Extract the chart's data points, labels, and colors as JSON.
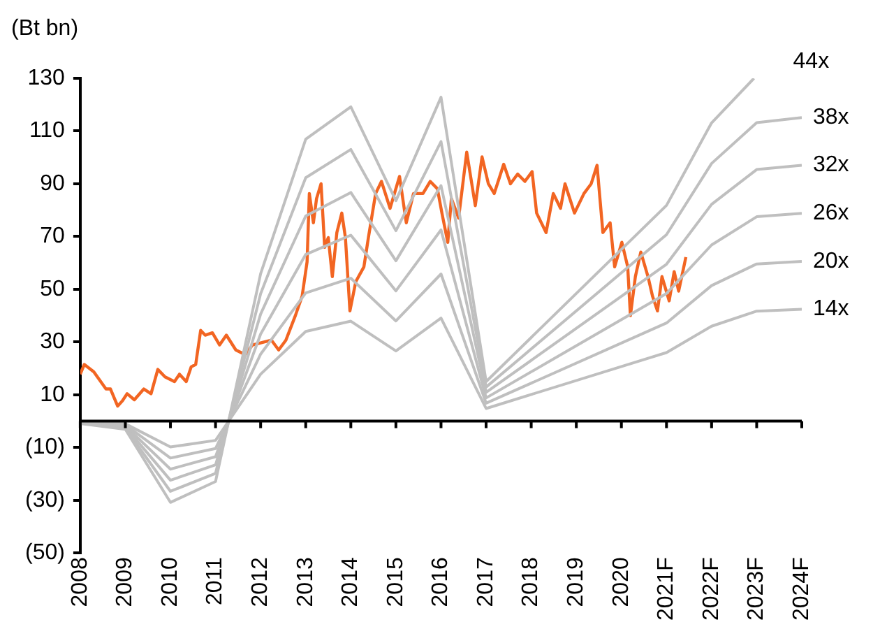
{
  "chart_data": {
    "type": "line",
    "ylabel": "(Bt bn)",
    "xlim": [
      2008,
      2024
    ],
    "xticks": [
      2008,
      2009,
      2010,
      2011,
      2012,
      2013,
      2014,
      2015,
      2016,
      2017,
      2018,
      2019,
      2020,
      {
        "value": 2021,
        "label": "2021F"
      },
      {
        "value": 2022,
        "label": "2022F"
      },
      {
        "value": 2023,
        "label": "2023F"
      },
      {
        "value": 2024,
        "label": "2024F"
      }
    ],
    "ylim": [
      -50,
      130
    ],
    "yticks": [
      {
        "value": -50,
        "label": "(50)"
      },
      {
        "value": -30,
        "label": "(30)"
      },
      {
        "value": -10,
        "label": "(10)"
      },
      10,
      30,
      50,
      70,
      90,
      110,
      130
    ],
    "legend": false,
    "marker": "none",
    "line_style": "solid",
    "series": [
      {
        "name": "44x",
        "color": "#bfbfbf",
        "x": [
          2008,
          2009,
          2010,
          2011,
          2012,
          2013,
          2014,
          2015,
          2016,
          2017,
          2021,
          2022,
          2022.94
        ],
        "values": [
          -0.9,
          -3.1,
          -30.8,
          -22.9,
          55.9,
          106.9,
          119.2,
          83.6,
          122.8,
          15,
          81.8,
          113.1,
          130
        ]
      },
      {
        "name": "38x",
        "color": "#bfbfbf",
        "x": [
          2008,
          2009,
          2010,
          2011,
          2012,
          2013,
          2014,
          2015,
          2016,
          2017,
          2021,
          2022,
          2023,
          2024
        ],
        "values": [
          -0.8,
          -2.7,
          -26.6,
          -19.8,
          48.3,
          92.3,
          103,
          72.2,
          106,
          12.9,
          70.7,
          97.7,
          113.2,
          115.1
        ]
      },
      {
        "name": "32x",
        "color": "#bfbfbf",
        "x": [
          2008,
          2009,
          2010,
          2011,
          2012,
          2013,
          2014,
          2015,
          2016,
          2017,
          2021,
          2022,
          2023,
          2024
        ],
        "values": [
          -0.6,
          -2.2,
          -22.4,
          -16.6,
          40.6,
          77.8,
          86.7,
          60.8,
          89.3,
          10.9,
          59.5,
          82.2,
          95.4,
          97
        ]
      },
      {
        "name": "26x",
        "color": "#bfbfbf",
        "x": [
          2008,
          2009,
          2010,
          2011,
          2012,
          2013,
          2014,
          2015,
          2016,
          2017,
          2021,
          2022,
          2023,
          2024
        ],
        "values": [
          -0.5,
          -1.8,
          -18.2,
          -13.5,
          33,
          63.2,
          70.5,
          49.4,
          72.5,
          8.8,
          48.4,
          66.8,
          77.5,
          78.8
        ]
      },
      {
        "name": "20x",
        "color": "#bfbfbf",
        "x": [
          2008,
          2009,
          2010,
          2011,
          2012,
          2013,
          2014,
          2015,
          2016,
          2017,
          2021,
          2022,
          2023,
          2024
        ],
        "values": [
          -0.4,
          -1.4,
          -14,
          -10.4,
          25.4,
          48.6,
          54.2,
          38,
          55.8,
          6.8,
          37.2,
          51.4,
          59.6,
          60.6
        ]
      },
      {
        "name": "14x",
        "color": "#bfbfbf",
        "x": [
          2008,
          2009,
          2010,
          2011,
          2012,
          2013,
          2014,
          2015,
          2016,
          2017,
          2021,
          2022,
          2023,
          2024
        ],
        "values": [
          -0.3,
          -1,
          -9.8,
          -7.3,
          17.8,
          34,
          37.9,
          26.6,
          39.1,
          4.8,
          26,
          36,
          41.7,
          42.4
        ]
      },
      {
        "color": "#f26522",
        "x": [
          2008,
          2008.09,
          2008.3,
          2008.57,
          2008.67,
          2008.83,
          2008.93,
          2009.04,
          2009.2,
          2009.41,
          2009.57,
          2009.72,
          2009.88,
          2010.09,
          2010.2,
          2010.35,
          2010.46,
          2010.56,
          2010.67,
          2010.77,
          2010.93,
          2011.09,
          2011.24,
          2011.45,
          2011.66,
          2011.82,
          2012.03,
          2012.24,
          2012.4,
          2012.56,
          2012.77,
          2012.92,
          2013.03,
          2013.08,
          2013.17,
          2013.24,
          2013.34,
          2013.42,
          2013.5,
          2013.59,
          2013.69,
          2013.8,
          2013.88,
          2013.98,
          2014.11,
          2014.29,
          2014.39,
          2014.55,
          2014.68,
          2014.87,
          2015.08,
          2015.23,
          2015.39,
          2015.6,
          2015.76,
          2015.92,
          2016.02,
          2016.15,
          2016.23,
          2016.39,
          2016.57,
          2016.76,
          2016.91,
          2017.05,
          2017.18,
          2017.39,
          2017.54,
          2017.7,
          2017.86,
          2018.02,
          2018.12,
          2018.33,
          2018.49,
          2018.65,
          2018.75,
          2018.96,
          2019.17,
          2019.33,
          2019.46,
          2019.59,
          2019.75,
          2019.85,
          2020.01,
          2020.14,
          2020.2,
          2020.31,
          2020.43,
          2020.59,
          2020.69,
          2020.8,
          2020.9,
          2021.06,
          2021.17,
          2021.27,
          2021.43
        ],
        "values": [
          17.8,
          21.5,
          18.7,
          12.2,
          12.2,
          5.7,
          7.6,
          10.4,
          8.1,
          12.2,
          10.4,
          19.6,
          16.8,
          15,
          17.8,
          15,
          20.6,
          21.5,
          34.4,
          32.6,
          33.5,
          28.9,
          32.6,
          27,
          25.2,
          28.9,
          29.8,
          30.7,
          27,
          30.7,
          40,
          47.4,
          60.4,
          86.3,
          75.2,
          84.4,
          90,
          65.9,
          69.6,
          54.8,
          71.5,
          78.9,
          69.6,
          41.8,
          52.9,
          58.5,
          69.6,
          86.3,
          90.9,
          80.7,
          92.8,
          75.2,
          86.3,
          86.3,
          90.9,
          88.1,
          78.9,
          67.8,
          84.4,
          77,
          102,
          81.7,
          100.2,
          90,
          86.3,
          97.4,
          90,
          93.7,
          90.9,
          94.6,
          78.9,
          71.5,
          86.3,
          80.7,
          90,
          78.9,
          86.3,
          90,
          97,
          71.5,
          75.2,
          58.5,
          67.8,
          58.5,
          40,
          54.8,
          64.1,
          54.8,
          47.4,
          41.8,
          54.8,
          45.6,
          56.7,
          49.3,
          62.2
        ]
      }
    ]
  }
}
